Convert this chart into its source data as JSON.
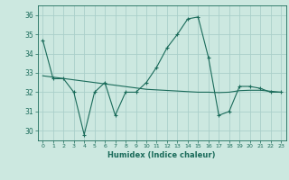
{
  "x": [
    0,
    1,
    2,
    3,
    4,
    5,
    6,
    7,
    8,
    9,
    10,
    11,
    12,
    13,
    14,
    15,
    16,
    17,
    18,
    19,
    20,
    21,
    22,
    23
  ],
  "y": [
    34.7,
    32.7,
    32.7,
    32.0,
    29.8,
    32.0,
    32.5,
    30.8,
    32.0,
    32.0,
    32.5,
    33.3,
    34.3,
    35.0,
    35.8,
    35.9,
    33.8,
    30.8,
    31.0,
    32.3,
    32.3,
    32.2,
    32.0,
    32.0
  ],
  "trend_y": [
    32.85,
    32.78,
    32.71,
    32.64,
    32.57,
    32.5,
    32.43,
    32.36,
    32.29,
    32.22,
    32.15,
    32.12,
    32.09,
    32.06,
    32.03,
    32.0,
    32.0,
    31.98,
    32.0,
    32.08,
    32.1,
    32.1,
    32.05,
    32.0
  ],
  "line_color": "#1a6b5a",
  "bg_color": "#cce8e0",
  "grid_color": "#aacfca",
  "xlabel": "Humidex (Indice chaleur)",
  "ylim": [
    29.5,
    36.5
  ],
  "xlim": [
    -0.5,
    23.5
  ],
  "yticks": [
    30,
    31,
    32,
    33,
    34,
    35,
    36
  ],
  "xticks": [
    0,
    1,
    2,
    3,
    4,
    5,
    6,
    7,
    8,
    9,
    10,
    11,
    12,
    13,
    14,
    15,
    16,
    17,
    18,
    19,
    20,
    21,
    22,
    23
  ]
}
